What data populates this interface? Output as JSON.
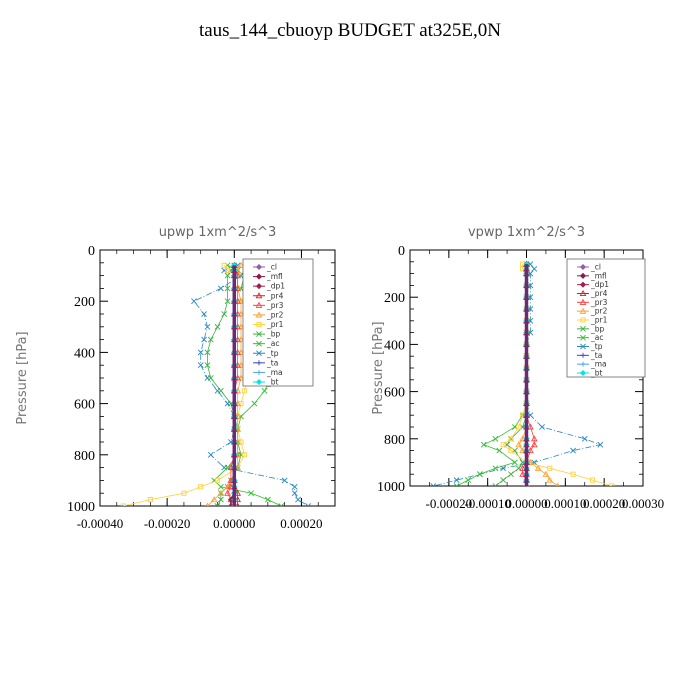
{
  "title": "taus_144_cbuoyp  BUDGET at325E,0N",
  "legend_labels": [
    "_cl",
    "_mfl",
    "_dp1",
    "_pr4",
    "_pr3",
    "_pr2",
    "_pr1",
    "_bp",
    "_ac",
    "_tp",
    "_ta",
    "_ma",
    "_bt"
  ],
  "series_colors": {
    "_cl": "#8e5fa8",
    "_mfl": "#8b1a4a",
    "_dp1": "#a0204a",
    "_pr4": "#d0202a",
    "_pr3": "#ff4040",
    "_pr2": "#ffa030",
    "_pr1": "#ffd040",
    "_bp": "#3cb044",
    "_ac": "#2ec02e",
    "_tp": "#2a88c0",
    "_ta": "#4444cc",
    "_ma": "#4da6e0",
    "_bt": "#00e5e5"
  },
  "chart_data": [
    {
      "type": "line",
      "title": "upwp  1xm^2/s^3",
      "xlabel": "",
      "ylabel": "Pressure [hPa]",
      "xlim": [
        -0.0004,
        0.0003
      ],
      "ylim": [
        1000,
        0
      ],
      "xticks": [
        "-0.00040",
        "-0.00020",
        "0.00000",
        "0.00020"
      ],
      "yticks": [
        "0",
        "200",
        "400",
        "600",
        "800",
        "1000"
      ],
      "legend_position": "top-right",
      "y": [
        60,
        80,
        100,
        150,
        200,
        250,
        300,
        350,
        400,
        450,
        500,
        550,
        600,
        650,
        700,
        750,
        800,
        850,
        900,
        925,
        950,
        975,
        1000
      ],
      "series": [
        {
          "name": "_tp",
          "values": [
            1e-05,
            -3e-05,
            2e-05,
            -4e-05,
            -0.00012,
            -9e-05,
            -8e-05,
            -9e-05,
            -0.0001,
            -0.0001,
            -8e-05,
            -5e-05,
            -2e-05,
            0,
            0,
            -1e-05,
            -7e-05,
            -3e-05,
            0.00015,
            0.00018,
            0.00018,
            0.00019,
            0.00022
          ]
        },
        {
          "name": "_ac",
          "values": [
            -2e-05,
            1e-05,
            3e-05,
            2e-05,
            5e-05,
            8e-05,
            9e-05,
            0.0001,
            0.00011,
            0.00012,
            0.00011,
            9e-05,
            6e-05,
            2e-05,
            1e-05,
            1e-05,
            1e-05,
            -2e-05,
            -6e-05,
            -4e-05,
            5e-05,
            0.0001,
            0.00014
          ]
        },
        {
          "name": "_bp",
          "values": [
            0,
            -1e-05,
            -2e-05,
            -2e-05,
            -2e-05,
            -3e-05,
            -5e-05,
            -7e-05,
            -8e-05,
            -8e-05,
            -7e-05,
            -4e-05,
            -1e-05,
            0,
            1e-05,
            1e-05,
            2e-05,
            1e-05,
            -1e-05,
            -2e-05,
            -4e-05,
            -4e-05,
            -5e-05
          ]
        },
        {
          "name": "_pr1",
          "values": [
            -3e-05,
            -2e-05,
            1e-05,
            1e-05,
            2e-05,
            5e-05,
            5e-05,
            5e-05,
            4e-05,
            4e-05,
            4e-05,
            3e-05,
            2e-05,
            1e-05,
            1e-05,
            2e-05,
            3e-05,
            1e-05,
            -5e-05,
            -0.0001,
            -0.00015,
            -0.00025,
            -0.00033
          ]
        },
        {
          "name": "_pr2",
          "values": [
            2e-05,
            1e-05,
            1e-05,
            1e-05,
            2e-05,
            2e-05,
            2e-05,
            2e-05,
            2e-05,
            2e-05,
            2e-05,
            1e-05,
            1e-05,
            1e-05,
            1e-05,
            1e-05,
            1e-05,
            1e-05,
            -1e-05,
            -2e-05,
            -4e-05,
            -6e-05,
            -8e-05
          ]
        },
        {
          "name": "_pr3",
          "values": [
            0,
            0,
            1e-05,
            1e-05,
            1e-05,
            1e-05,
            1e-05,
            1e-05,
            1e-05,
            1e-05,
            1e-05,
            0,
            0,
            0,
            0,
            0,
            0,
            -1e-05,
            -1e-05,
            -1e-05,
            -2e-05,
            -1e-05,
            0
          ]
        },
        {
          "name": "_pr4",
          "values": [
            0,
            0,
            0,
            0,
            0,
            0,
            0,
            0,
            0,
            0,
            0,
            0,
            0,
            0,
            0,
            0,
            0,
            0,
            0,
            0,
            1e-05,
            1e-05,
            1e-05
          ]
        },
        {
          "name": "_dp1",
          "values": [
            0,
            0,
            0,
            0,
            0,
            0,
            0,
            0,
            0,
            0,
            0,
            0,
            0,
            0,
            0,
            0,
            0,
            0,
            0,
            0,
            0,
            -1e-05,
            -1e-05
          ]
        },
        {
          "name": "_mfl",
          "values": [
            0,
            0,
            0,
            0,
            0,
            0,
            0,
            0,
            0,
            0,
            0,
            0,
            0,
            0,
            0,
            0,
            0,
            0,
            0,
            0,
            0,
            0,
            0
          ]
        },
        {
          "name": "_cl",
          "values": [
            0,
            0,
            0,
            0,
            0,
            0,
            0,
            0,
            0,
            0,
            0,
            0,
            0,
            0,
            0,
            0,
            0,
            0,
            0,
            0,
            0,
            0,
            0
          ]
        },
        {
          "name": "_ta",
          "values": [
            0,
            0,
            0,
            0,
            0,
            0,
            0,
            0,
            0,
            0,
            0,
            0,
            0,
            0,
            0,
            0,
            0,
            0,
            0,
            0,
            0,
            0,
            0
          ]
        },
        {
          "name": "_ma",
          "values": [
            0,
            0,
            0,
            0,
            0,
            0,
            0,
            0,
            0,
            0,
            0,
            0,
            0,
            0,
            0,
            0,
            0,
            0,
            0,
            0,
            0,
            0,
            0
          ]
        },
        {
          "name": "_bt",
          "values": [
            0,
            0,
            0,
            0,
            0,
            0,
            0,
            0,
            0,
            0,
            0,
            0,
            0,
            0,
            0,
            0,
            0,
            0,
            0,
            0,
            0,
            0,
            0
          ]
        }
      ]
    },
    {
      "type": "line",
      "title": "vpwp  1xm^2/s^3",
      "xlabel": "",
      "ylabel": "Pressure [hPa]",
      "xlim": [
        -0.0003,
        0.0003
      ],
      "ylim": [
        1000,
        0
      ],
      "xticks": [
        "-0.00020",
        "-0.00010",
        "0.00000",
        "0.00010",
        "0.00020",
        "0.00030"
      ],
      "yticks": [
        "0",
        "200",
        "400",
        "600",
        "800",
        "1000"
      ],
      "legend_position": "top-right",
      "y": [
        60,
        80,
        100,
        150,
        200,
        250,
        300,
        350,
        400,
        450,
        500,
        550,
        600,
        650,
        700,
        750,
        800,
        825,
        850,
        900,
        925,
        950,
        975,
        1000
      ],
      "series": [
        {
          "name": "_tp",
          "values": [
            1e-05,
            2e-05,
            1e-05,
            1e-05,
            1e-05,
            1e-05,
            1e-05,
            1e-05,
            0,
            0,
            0,
            0,
            0,
            0,
            1e-05,
            4e-05,
            0.00015,
            0.00019,
            0.00012,
            2e-05,
            -6e-05,
            -0.00012,
            -0.00018,
            -0.00024
          ]
        },
        {
          "name": "_ac",
          "values": [
            0,
            0,
            0,
            0,
            0,
            0,
            0,
            0,
            0,
            0,
            0,
            0,
            0,
            0,
            -1e-05,
            -3e-05,
            -8e-05,
            -0.00011,
            -7e-05,
            -3e-05,
            -8e-05,
            -0.00012,
            -0.00015,
            -0.00018
          ]
        },
        {
          "name": "_bp",
          "values": [
            0,
            0,
            0,
            0,
            0,
            0,
            0,
            0,
            0,
            0,
            0,
            0,
            0,
            0,
            0,
            -1e-05,
            -4e-05,
            -5e-05,
            -3e-05,
            -1e-05,
            -2e-05,
            -4e-05,
            -6e-05,
            -8e-05
          ]
        },
        {
          "name": "_pr1",
          "values": [
            -1e-05,
            -1e-05,
            0,
            0,
            0,
            0,
            0,
            0,
            0,
            0,
            0,
            0,
            0,
            0,
            -1e-05,
            -2e-05,
            -4e-05,
            -6e-05,
            -4e-05,
            0,
            6e-05,
            0.00012,
            0.00017,
            0.00022
          ]
        },
        {
          "name": "_pr2",
          "values": [
            0,
            0,
            0,
            0,
            0,
            0,
            0,
            0,
            0,
            0,
            0,
            0,
            0,
            0,
            0,
            0,
            -1e-05,
            -2e-05,
            -1e-05,
            1e-05,
            3e-05,
            5e-05,
            6e-05,
            8e-05
          ]
        },
        {
          "name": "_pr3",
          "values": [
            0,
            0,
            0,
            0,
            0,
            0,
            0,
            0,
            0,
            0,
            0,
            0,
            0,
            0,
            0,
            1e-05,
            2e-05,
            2e-05,
            1e-05,
            0,
            -1e-05,
            -1e-05,
            0,
            0
          ]
        },
        {
          "name": "_pr4",
          "values": [
            0,
            0,
            0,
            0,
            0,
            0,
            0,
            0,
            0,
            0,
            0,
            0,
            0,
            0,
            0,
            0,
            0,
            0,
            0,
            0,
            0,
            0,
            0,
            0
          ]
        },
        {
          "name": "_dp1",
          "values": [
            0,
            0,
            0,
            0,
            0,
            0,
            0,
            0,
            0,
            0,
            0,
            0,
            0,
            0,
            0,
            0,
            0,
            0,
            0,
            0,
            0,
            0,
            0,
            0
          ]
        },
        {
          "name": "_mfl",
          "values": [
            0,
            0,
            0,
            0,
            0,
            0,
            0,
            0,
            0,
            0,
            0,
            0,
            0,
            0,
            0,
            0,
            0,
            0,
            0,
            0,
            0,
            0,
            0,
            0
          ]
        },
        {
          "name": "_cl",
          "values": [
            0,
            0,
            0,
            0,
            0,
            0,
            0,
            0,
            0,
            0,
            0,
            0,
            0,
            0,
            0,
            0,
            0,
            0,
            0,
            0,
            0,
            0,
            0,
            0
          ]
        },
        {
          "name": "_ta",
          "values": [
            0,
            0,
            0,
            0,
            0,
            0,
            0,
            0,
            0,
            0,
            0,
            0,
            0,
            0,
            0,
            0,
            0,
            0,
            0,
            0,
            0,
            0,
            0,
            0
          ]
        },
        {
          "name": "_ma",
          "values": [
            0,
            0,
            0,
            0,
            0,
            0,
            0,
            0,
            0,
            0,
            0,
            0,
            0,
            0,
            0,
            0,
            0,
            0,
            0,
            0,
            0,
            0,
            0,
            0
          ]
        },
        {
          "name": "_bt",
          "values": [
            0,
            0,
            0,
            0,
            0,
            0,
            0,
            0,
            0,
            0,
            0,
            0,
            0,
            0,
            0,
            0,
            0,
            0,
            0,
            0,
            0,
            0,
            0,
            0
          ]
        }
      ]
    }
  ]
}
